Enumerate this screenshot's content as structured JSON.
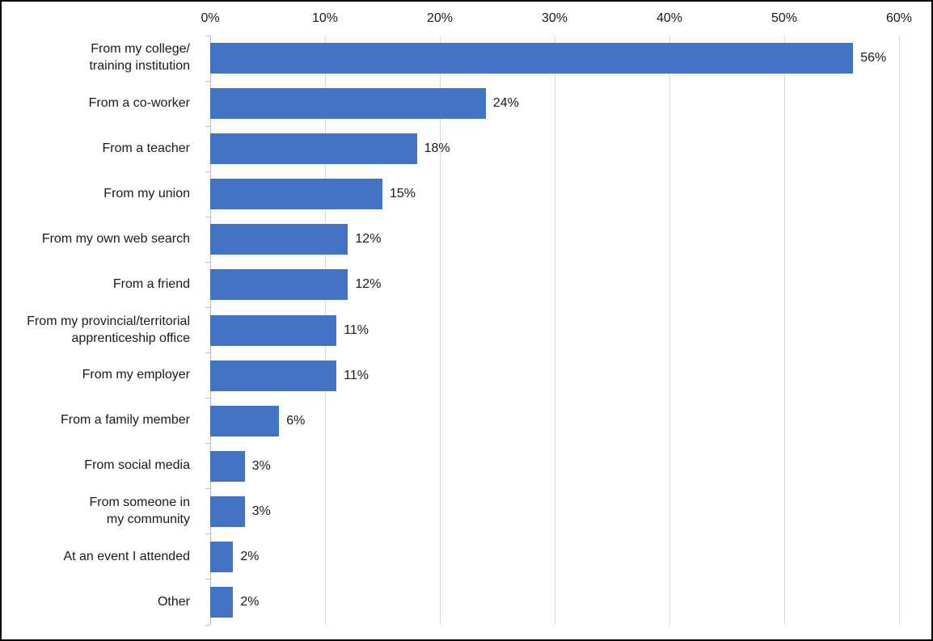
{
  "chart_data": {
    "type": "bar",
    "orientation": "horizontal",
    "title": "",
    "xlabel": "",
    "ylabel": "",
    "xlim": [
      0,
      60
    ],
    "x_tick_values": [
      0,
      10,
      20,
      30,
      40,
      50,
      60
    ],
    "x_tick_labels": [
      "0%",
      "10%",
      "20%",
      "30%",
      "40%",
      "50%",
      "60%"
    ],
    "grid": true,
    "legend": false,
    "bar_color": "#4472C4",
    "gridline_color": "#D9D9D9",
    "axis_color": "#BFBFBF",
    "categories": [
      "From my college/\ntraining institution",
      "From a co-worker",
      "From a teacher",
      "From my union",
      "From my own web search",
      "From a friend",
      "From my provincial/territorial\napprenticeship office",
      "From my employer",
      "From a family member",
      "From social media",
      "From someone in\nmy community",
      "At an event I attended",
      "Other"
    ],
    "values": [
      56,
      24,
      18,
      15,
      12,
      12,
      11,
      11,
      6,
      3,
      3,
      2,
      2
    ],
    "data_labels": [
      "56%",
      "24%",
      "18%",
      "15%",
      "12%",
      "12%",
      "11%",
      "11%",
      "6%",
      "3%",
      "3%",
      "2%",
      "2%"
    ]
  }
}
